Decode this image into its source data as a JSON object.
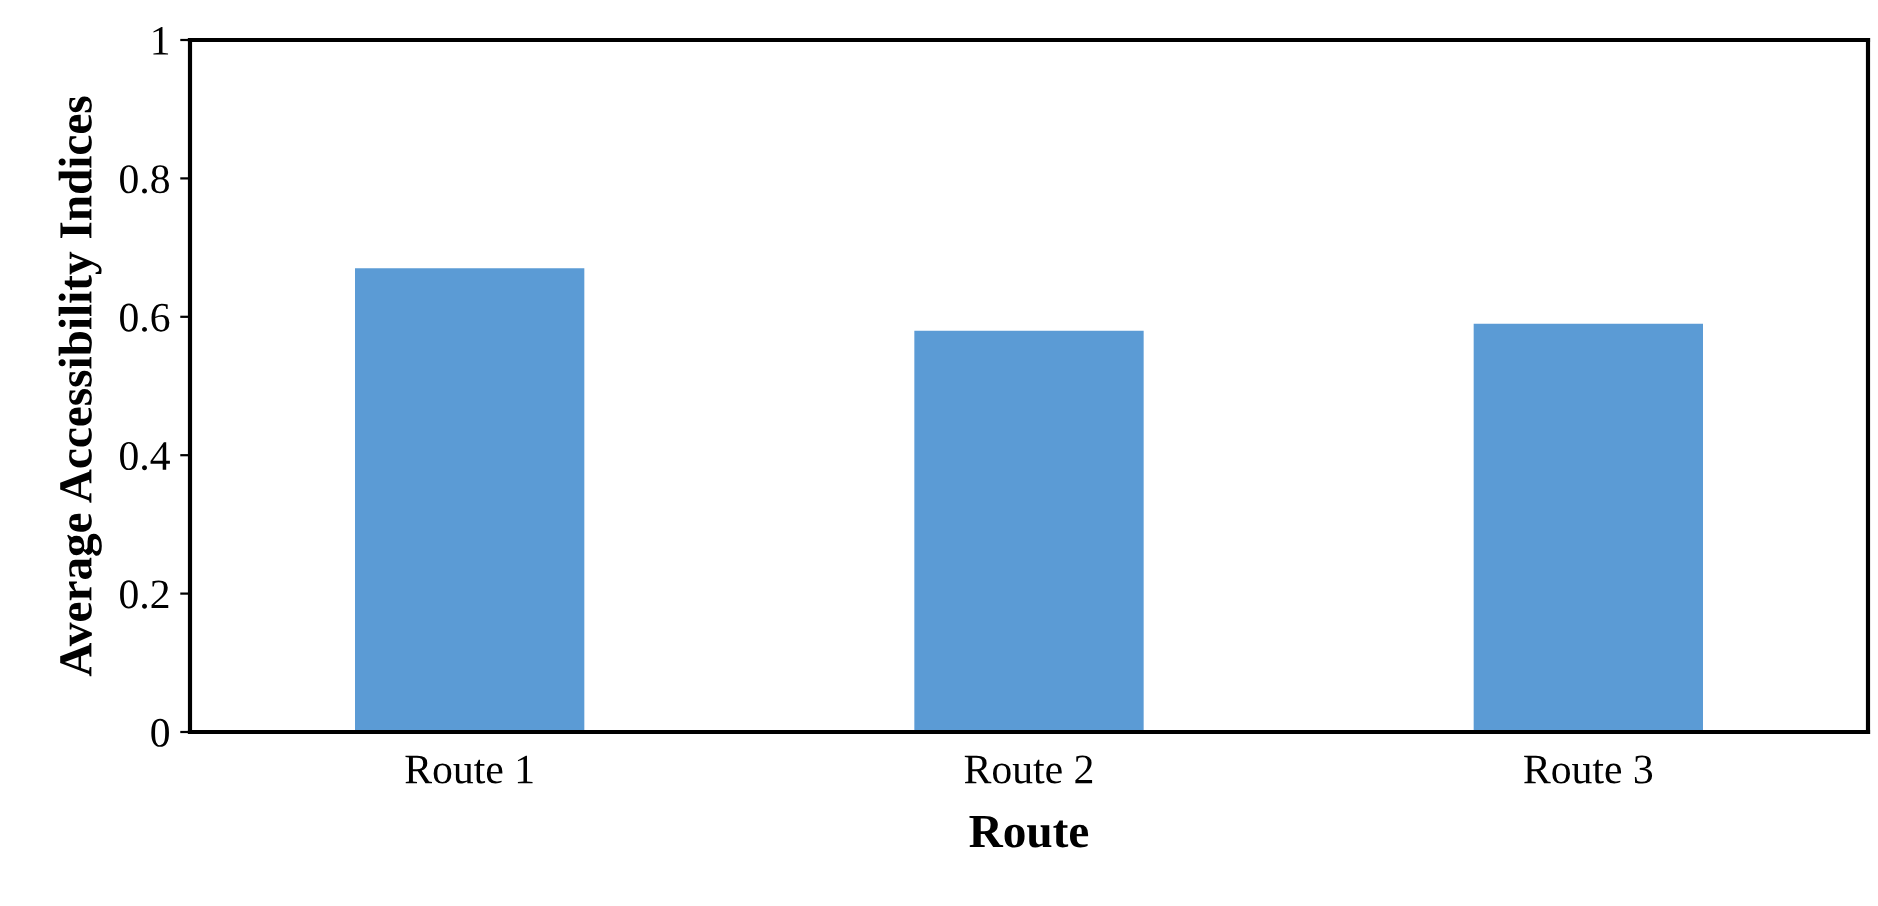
{
  "chart_data": {
    "type": "bar",
    "xlabel": "Route",
    "ylabel": "Average Accessibility Indices",
    "categories": [
      "Route 1",
      "Route 2",
      "Route 3"
    ],
    "values": [
      0.67,
      0.58,
      0.59
    ],
    "color": "#5b9bd5",
    "ylim": [
      0,
      1
    ],
    "yticks": [
      0,
      0.2,
      0.4,
      0.6,
      0.8,
      1
    ],
    "grid": false,
    "legend": false
  }
}
